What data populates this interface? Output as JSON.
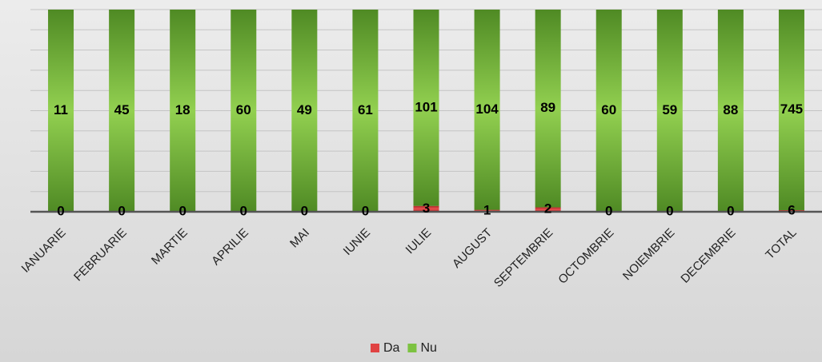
{
  "chart_data": {
    "type": "bar",
    "stacking": "percent",
    "categories": [
      "IANUARIE",
      "FEBRUARIE",
      "MARTIE",
      "APRILIE",
      "MAI",
      "IUNIE",
      "IULIE",
      "AUGUST",
      "SEPTEMBRIE",
      "OCTOMBRIE",
      "NOIEMBRIE",
      "DECEMBRIE",
      "TOTAL"
    ],
    "series": [
      {
        "name": "Da",
        "color": "#e04343",
        "values": [
          0,
          0,
          0,
          0,
          0,
          0,
          3,
          1,
          2,
          0,
          0,
          0,
          6
        ]
      },
      {
        "name": "Nu",
        "color": "#7cc241",
        "values": [
          11,
          45,
          18,
          60,
          49,
          61,
          101,
          104,
          89,
          60,
          59,
          88,
          745
        ]
      }
    ],
    "ylim": [
      0,
      100
    ],
    "yticks": [
      0,
      10,
      20,
      30,
      40,
      50,
      60,
      70,
      80,
      90,
      100
    ],
    "show_ytick_labels": false,
    "grid": true,
    "legend": "bottom"
  }
}
